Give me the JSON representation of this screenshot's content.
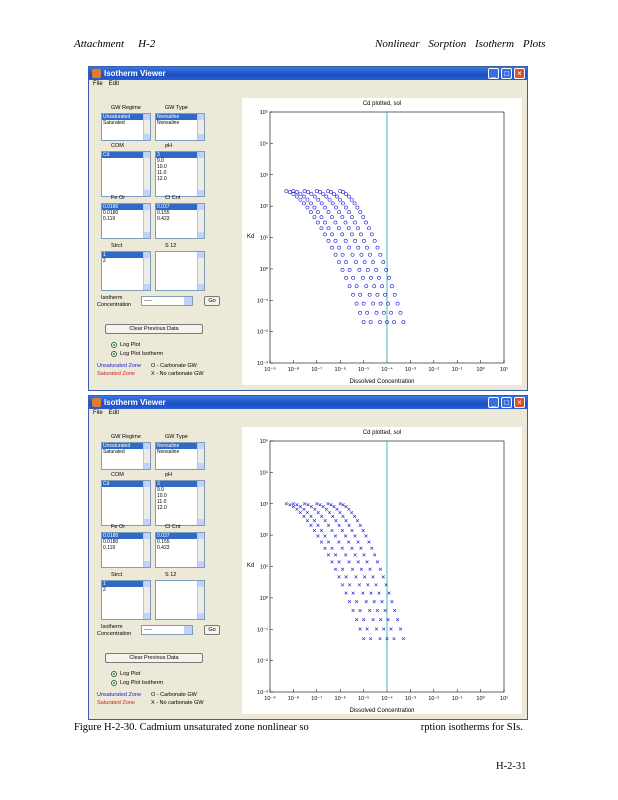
{
  "header": {
    "left_title": "Attachment",
    "left_section": "H-2",
    "right_title": "Nonlinear  Sorption  Isotherm  Plots"
  },
  "windows": [
    {
      "title": "Isotherm Viewer",
      "menu": [
        "File",
        "Edit"
      ],
      "gw_regime": {
        "label": "GW Regime",
        "items": [
          "Unsaturated",
          "Saturated"
        ]
      },
      "gw_type": {
        "label": "GW Type",
        "items": [
          "Nonsaline",
          "Nonsaline"
        ]
      },
      "list3": {
        "label": "COM",
        "items": [
          "Cd"
        ]
      },
      "list4": {
        "label": "pH",
        "items": [
          "3",
          "9.0",
          "10.0",
          "11.0",
          "12.0"
        ]
      },
      "list5": {
        "label": "Fe Or",
        "items": [
          "0.0180",
          "0.0180",
          "0.119"
        ]
      },
      "list6": {
        "label": "Cl Cnt",
        "items": [
          "0.037",
          "0.155",
          "0.423"
        ]
      },
      "list7": {
        "label": "Strct",
        "items": [
          "1",
          "2"
        ]
      },
      "list8": {
        "label": "S 12",
        "items": []
      },
      "concentration_label": "Isotherm",
      "concentration_label2": "Concentration",
      "concentration_select": "-----",
      "go_button": "Go",
      "clear_button": "Clear Previous Data",
      "radio1": "Log Plot",
      "radio2": "Log Plot Isotherm",
      "legend_left1": "Unsaturated Zone",
      "legend_left2": "Saturated Zone",
      "legend_right1": "O - Carbonate GW",
      "legend_right2": "X - No carbonate GW",
      "legend_colors": {
        "unsat": "#1a1ad0",
        "sat": "#d01a1a"
      },
      "plot_title": "Cd plotted, sol",
      "xlabel": "Dissolved Concentration",
      "ylabel": "Kd",
      "ytick_labels": [
        "10⁵",
        "10⁴",
        "10³",
        "10²",
        "10¹",
        "10⁰",
        "10⁻¹",
        "10⁻²",
        "10⁻³"
      ],
      "xtick_labels": [
        "10⁻⁹",
        "10⁻⁸",
        "10⁻⁷",
        "10⁻⁶",
        "10⁻⁵",
        "10⁻⁴",
        "10⁻³",
        "10⁻²",
        "10⁻¹",
        "10⁰",
        "10¹"
      ],
      "marker": "o",
      "chart_data": {
        "type": "scatter",
        "title": "Cd plotted, sol",
        "xlabel": "Dissolved Concentration",
        "ylabel": "Kd",
        "x_scale": "log",
        "y_scale": "log",
        "xlim": [
          1e-09,
          10
        ],
        "ylim": [
          0.001,
          100000
        ],
        "reference_line_x": 0.0001,
        "marker_color": "#1a1ad0",
        "series": [
          {
            "marker": "o",
            "curves": [
              {
                "x_start": 5e-09,
                "y_start": 300,
                "x_end": 1e-05,
                "y_end": 0.02
              },
              {
                "x_start": 1e-08,
                "y_start": 300,
                "x_end": 2e-05,
                "y_end": 0.02
              },
              {
                "x_start": 3e-08,
                "y_start": 300,
                "x_end": 5e-05,
                "y_end": 0.02
              },
              {
                "x_start": 1e-07,
                "y_start": 300,
                "x_end": 0.0001,
                "y_end": 0.02
              },
              {
                "x_start": 3e-07,
                "y_start": 300,
                "x_end": 0.0002,
                "y_end": 0.02
              },
              {
                "x_start": 1e-06,
                "y_start": 300,
                "x_end": 0.0005,
                "y_end": 0.02
              }
            ]
          }
        ]
      }
    },
    {
      "title": "Isotherm Viewer",
      "menu": [
        "File",
        "Edit"
      ],
      "gw_regime": {
        "label": "GW Regime",
        "items": [
          "Unsaturated",
          "Saturated"
        ]
      },
      "gw_type": {
        "label": "GW Type",
        "items": [
          "Nonsaline",
          "Nonsaline"
        ]
      },
      "list3": {
        "label": "COM",
        "items": [
          "Cd"
        ]
      },
      "list4": {
        "label": "pH",
        "items": [
          "3",
          "9.0",
          "10.0",
          "11.0",
          "12.0"
        ]
      },
      "list5": {
        "label": "Fe Or",
        "items": [
          "0.0180",
          "0.0180",
          "0.119"
        ]
      },
      "list6": {
        "label": "Cl Cnt",
        "items": [
          "0.037",
          "0.155",
          "0.423"
        ]
      },
      "list7": {
        "label": "Strct",
        "items": [
          "1",
          "2"
        ]
      },
      "list8": {
        "label": "S 12",
        "items": []
      },
      "concentration_label": "Isotherm",
      "concentration_label2": "Concentration",
      "concentration_select": "-----",
      "go_button": "Go",
      "clear_button": "Clear Previous Data",
      "radio1": "Log Plot",
      "radio2": "Log Plot Isotherm",
      "legend_left1": "Unsaturated Zone",
      "legend_left2": "Saturated Zone",
      "legend_right1": "O - Carbonate GW",
      "legend_right2": "X - No carbonate GW",
      "legend_colors": {
        "unsat": "#1a1ad0",
        "sat": "#d01a1a"
      },
      "plot_title": "Cd plotted, sol",
      "xlabel": "Dissolved Concentration",
      "ylabel": "Kd",
      "ytick_labels": [
        "10⁵",
        "10⁴",
        "10³",
        "10²",
        "10¹",
        "10⁰",
        "10⁻¹",
        "10⁻²",
        "10⁻³"
      ],
      "xtick_labels": [
        "10⁻⁹",
        "10⁻⁸",
        "10⁻⁷",
        "10⁻⁶",
        "10⁻⁵",
        "10⁻⁴",
        "10⁻³",
        "10⁻²",
        "10⁻¹",
        "10⁰",
        "10¹"
      ],
      "marker": "x",
      "chart_data": {
        "type": "scatter",
        "title": "Cd plotted, sol",
        "xlabel": "Dissolved Concentration",
        "ylabel": "Kd",
        "x_scale": "log",
        "y_scale": "log",
        "xlim": [
          1e-09,
          10
        ],
        "ylim": [
          0.001,
          100000
        ],
        "reference_line_x": 0.0001,
        "marker_color": "#1a1ad0",
        "series": [
          {
            "marker": "x",
            "curves": [
              {
                "x_start": 5e-09,
                "y_start": 1000,
                "x_end": 1e-05,
                "y_end": 0.05
              },
              {
                "x_start": 1e-08,
                "y_start": 1000,
                "x_end": 2e-05,
                "y_end": 0.05
              },
              {
                "x_start": 3e-08,
                "y_start": 1000,
                "x_end": 5e-05,
                "y_end": 0.05
              },
              {
                "x_start": 1e-07,
                "y_start": 1000,
                "x_end": 0.0001,
                "y_end": 0.05
              },
              {
                "x_start": 3e-07,
                "y_start": 1000,
                "x_end": 0.0002,
                "y_end": 0.05
              },
              {
                "x_start": 1e-06,
                "y_start": 1000,
                "x_end": 0.0005,
                "y_end": 0.05
              }
            ]
          }
        ]
      }
    }
  ],
  "caption": {
    "part1": "Figure H-2-30. Cadmium unsaturated zone nonlinear so",
    "part2": "rption isotherms for SIs."
  },
  "page_number": "H-2-31"
}
